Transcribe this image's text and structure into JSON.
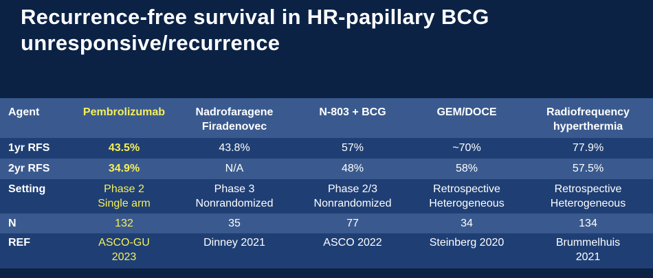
{
  "title": {
    "line1": "Recurrence-free survival in HR-papillary BCG",
    "line2": "unresponsive/recurrence"
  },
  "colors": {
    "background": "#0b2245",
    "row_light": "#3a5a8f",
    "row_dark": "#1f3f74",
    "highlight": "#f6ef5a"
  },
  "table": {
    "headers": [
      "Agent",
      "Pembrolizumab",
      "Nadrofaragene Firadenovec",
      "N-803 + BCG",
      "GEM/DOCE",
      "Radiofrequency hyperthermia"
    ],
    "header_lines": {
      "agent": "Agent",
      "pembro": "Pembrolizumab",
      "nadro_1": "Nadrofaragene",
      "nadro_2": "Firadenovec",
      "n803": "N-803 + BCG",
      "gemdoce": "GEM/DOCE",
      "rf_1": "Radiofrequency",
      "rf_2": "hyperthermia"
    },
    "rows": [
      {
        "label": "1yr RFS",
        "values": [
          "43.5%",
          "43.8%",
          "57%",
          "~70%",
          "77.9%"
        ]
      },
      {
        "label": "2yr RFS",
        "values": [
          "34.9%",
          "N/A",
          "48%",
          "58%",
          "57.5%"
        ]
      },
      {
        "label": "Setting",
        "values": [
          [
            "Phase 2",
            "Single arm"
          ],
          [
            "Phase 3",
            "Nonrandomized"
          ],
          [
            "Phase 2/3",
            "Nonrandomized"
          ],
          [
            "Retrospective",
            "Heterogeneous"
          ],
          [
            "Retrospective",
            "Heterogeneous"
          ]
        ]
      },
      {
        "label": "N",
        "values": [
          "132",
          "35",
          "77",
          "34",
          "134"
        ]
      },
      {
        "label": "REF",
        "values": [
          [
            "ASCO-GU",
            "2023"
          ],
          [
            "Dinney 2021"
          ],
          [
            "ASCO 2022"
          ],
          [
            "Steinberg 2020"
          ],
          [
            "Brummelhuis",
            "2021"
          ]
        ]
      }
    ]
  }
}
